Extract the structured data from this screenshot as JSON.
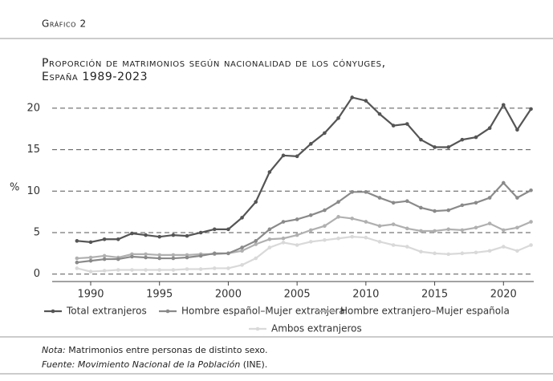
{
  "header": {
    "label": "Gráfico 2"
  },
  "chart_data": {
    "type": "line",
    "title": "Proporción de matrimonios según nacionalidad de los cónyuges,",
    "subtitle": "España 1989-2023",
    "y_label": "%",
    "x": [
      1989,
      1990,
      1991,
      1992,
      1993,
      1994,
      1995,
      1996,
      1997,
      1998,
      1999,
      2000,
      2001,
      2002,
      2003,
      2004,
      2005,
      2006,
      2007,
      2008,
      2009,
      2010,
      2011,
      2012,
      2013,
      2014,
      2015,
      2016,
      2017,
      2018,
      2019,
      2020,
      2021,
      2022
    ],
    "series": [
      {
        "name": "Total extranjeros",
        "color": "#555555",
        "values": [
          4.0,
          3.85,
          4.2,
          4.2,
          4.9,
          4.7,
          4.5,
          4.7,
          4.6,
          5.0,
          5.4,
          5.4,
          6.8,
          8.7,
          12.3,
          14.3,
          14.2,
          15.7,
          17.0,
          18.8,
          21.3,
          20.9,
          19.3,
          17.9,
          18.1,
          16.2,
          15.3,
          15.3,
          16.2,
          16.5,
          17.6,
          20.4,
          17.4,
          19.9
        ]
      },
      {
        "name": "Hombre español–Mujer extranjera",
        "color": "#8a8a8a",
        "values": [
          1.4,
          1.6,
          1.8,
          1.8,
          2.1,
          2.0,
          1.9,
          1.9,
          2.0,
          2.2,
          2.5,
          2.5,
          3.2,
          4.0,
          5.4,
          6.3,
          6.6,
          7.1,
          7.7,
          8.7,
          9.9,
          9.9,
          9.2,
          8.6,
          8.8,
          8.0,
          7.6,
          7.7,
          8.3,
          8.6,
          9.2,
          11.0,
          9.2,
          10.1
        ]
      },
      {
        "name": "Hombre extranjero–Mujer española",
        "color": "#b0b0b0",
        "values": [
          1.9,
          2.0,
          2.2,
          2.0,
          2.4,
          2.4,
          2.3,
          2.3,
          2.3,
          2.4,
          2.4,
          2.5,
          2.8,
          3.6,
          4.2,
          4.3,
          4.7,
          5.3,
          5.8,
          6.9,
          6.7,
          6.3,
          5.8,
          6.0,
          5.5,
          5.2,
          5.2,
          5.4,
          5.3,
          5.6,
          6.1,
          5.3,
          5.6,
          6.3
        ]
      },
      {
        "name": "Ambos extranjeros",
        "color": "#d9d9d9",
        "values": [
          0.7,
          0.3,
          0.4,
          0.5,
          0.5,
          0.5,
          0.5,
          0.5,
          0.6,
          0.6,
          0.7,
          0.7,
          1.1,
          1.9,
          3.2,
          3.8,
          3.5,
          3.9,
          4.1,
          4.3,
          4.5,
          4.4,
          3.9,
          3.5,
          3.3,
          2.7,
          2.5,
          2.4,
          2.5,
          2.6,
          2.8,
          3.3,
          2.8,
          3.5
        ]
      }
    ],
    "xlim": [
      1987.2,
      2022.2
    ],
    "xticks": [
      1990,
      1995,
      2000,
      2005,
      2010,
      2015,
      2020
    ],
    "ylim": [
      -0.9,
      22.6
    ],
    "yticks": [
      0,
      5,
      10,
      15,
      20
    ],
    "grid": true
  },
  "notes": [
    {
      "label": "Nota:",
      "text": "Matrimonios entre personas de distinto sexo."
    },
    {
      "label": "Fuente:",
      "text": "Movimiento Nacional de la Población",
      "suffix": "(INE)."
    }
  ]
}
